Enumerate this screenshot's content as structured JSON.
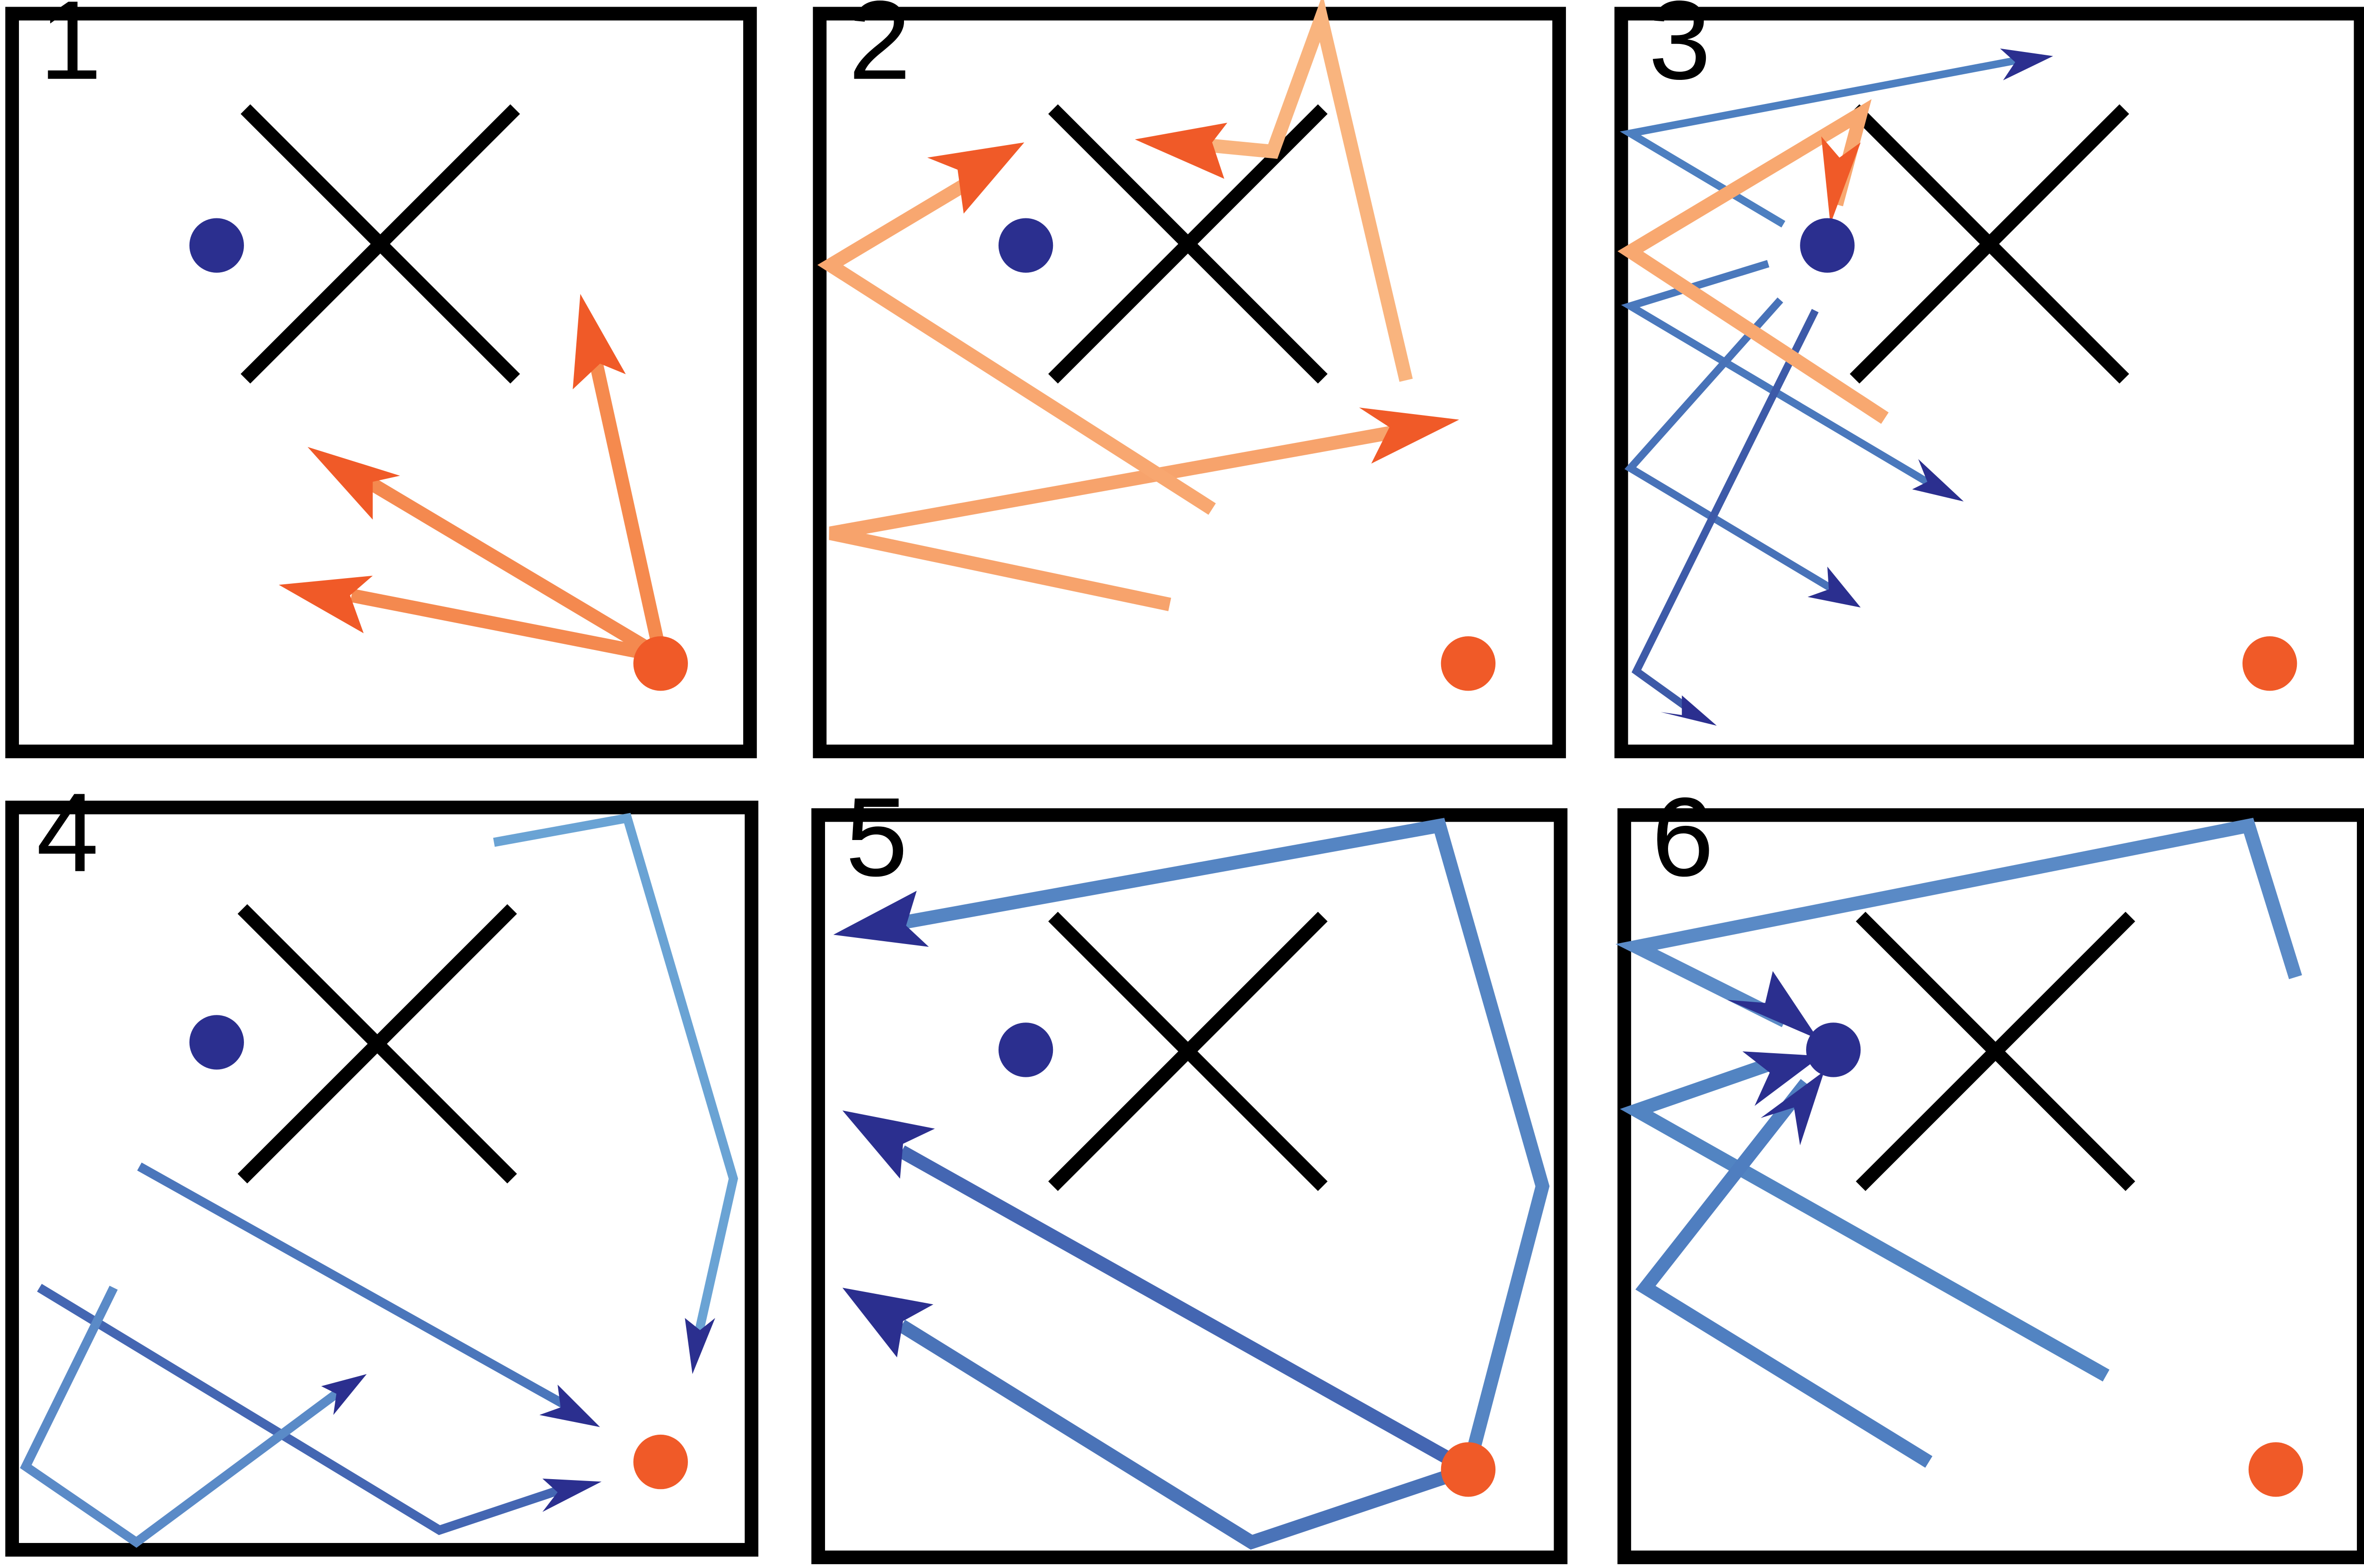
{
  "colors": {
    "frame": "#000000",
    "blue_dot": "#2b2f8f",
    "orange_dot": "#f05a28",
    "orange_dark": "#f05a28",
    "orange_light": "#fbc58e",
    "blue_dark": "#2b2f8f",
    "blue_light": "#7fb6dd"
  },
  "panels": [
    {
      "label": "1",
      "dominant_color": "orange"
    },
    {
      "label": "2",
      "dominant_color": "orange"
    },
    {
      "label": "3",
      "dominant_color": "mixed"
    },
    {
      "label": "4",
      "dominant_color": "blue"
    },
    {
      "label": "5",
      "dominant_color": "blue"
    },
    {
      "label": "6",
      "dominant_color": "blue"
    }
  ]
}
